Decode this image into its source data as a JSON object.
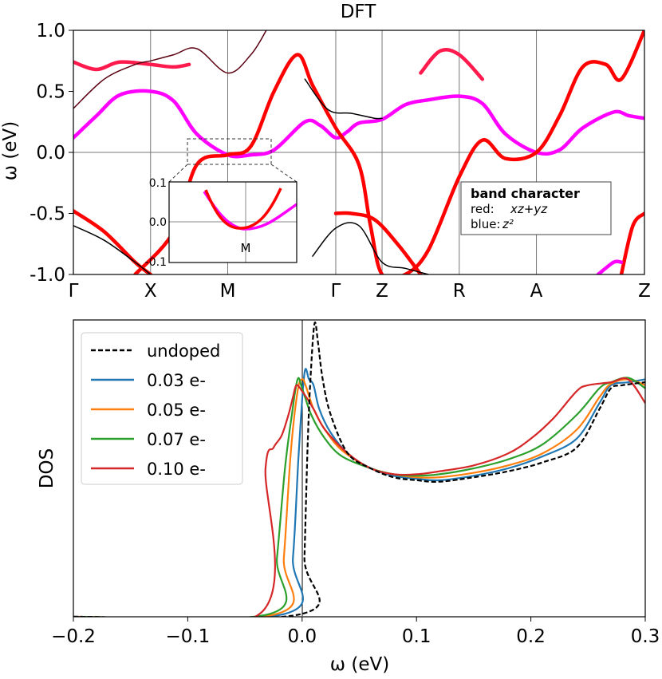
{
  "chart_data": [
    {
      "type": "line",
      "title": "DFT",
      "ylabel": "ω (eV)",
      "xlabel": "",
      "ylim": [
        -1.0,
        1.0
      ],
      "yticks": [
        "1.0",
        "0.5",
        "0.0",
        "-0.5",
        "-1.0"
      ],
      "kpoints": [
        "Γ",
        "X",
        "M",
        "Γ",
        "Z",
        "R",
        "A",
        "Z"
      ],
      "kpoint_positions": [
        0,
        1,
        2,
        3.4,
        4.0,
        5.0,
        6.0,
        7.4
      ],
      "grid": "vertical lines at high-symmetry points, horizontal line at 0",
      "legend": {
        "title": "band character",
        "entries": [
          {
            "label": "red:",
            "value": "xz+yz",
            "color": "#ff0000"
          },
          {
            "label": "blue:",
            "value": "z²",
            "color": "#1a1aff"
          }
        ],
        "position": "lower-right"
      },
      "inset": {
        "xlabel": "M",
        "ylim": [
          -0.1,
          0.1
        ],
        "yticks": [
          "0.1",
          "0.0",
          "-0.1"
        ],
        "position": "lower-center"
      },
      "series": [
        {
          "color": "#ff00ff",
          "x": [
            0,
            0.3,
            0.6,
            1.0,
            1.3,
            1.6,
            2.0,
            2.3,
            2.6,
            3.0,
            3.2,
            3.4,
            3.55,
            3.7,
            4.0,
            4.3,
            4.6,
            5.0,
            5.3,
            5.6,
            6.0,
            6.3,
            6.6,
            7.0,
            7.2,
            7.4
          ],
          "y": [
            0.12,
            0.3,
            0.47,
            0.5,
            0.42,
            0.15,
            -0.02,
            -0.02,
            0.02,
            0.25,
            0.22,
            0.12,
            0.17,
            0.24,
            0.27,
            0.39,
            0.43,
            0.46,
            0.4,
            0.15,
            0.0,
            0.02,
            0.2,
            0.33,
            0.3,
            0.28
          ]
        },
        {
          "color": "#ff0000",
          "x": [
            0.8,
            1.3,
            1.6,
            2.0,
            2.3,
            2.6,
            2.9,
            3.1,
            3.4,
            3.7,
            3.85,
            4.0,
            4.3,
            4.6,
            5.0,
            5.3,
            5.6,
            6.0,
            6.3,
            6.6,
            6.9,
            7.1,
            7.4
          ],
          "y": [
            -1.0,
            -0.65,
            -0.1,
            -0.02,
            0.05,
            0.5,
            0.8,
            0.55,
            0.2,
            -0.1,
            -0.6,
            -1.0,
            -1.0,
            -0.8,
            -0.2,
            0.1,
            -0.05,
            0.0,
            0.3,
            0.7,
            0.72,
            0.6,
            1.0
          ]
        },
        {
          "color": "#ff1a4d",
          "x": [
            0,
            0.3,
            0.6,
            1.0,
            1.3,
            1.5
          ],
          "y": [
            0.74,
            0.68,
            0.74,
            0.72,
            0.7,
            0.72
          ]
        },
        {
          "color": "#ff1a4d",
          "x": [
            4.5,
            4.75,
            5.0,
            5.3
          ],
          "y": [
            0.65,
            0.83,
            0.8,
            0.6
          ]
        },
        {
          "color": "#ff0000",
          "x": [
            0,
            0.4,
            0.8,
            1.0
          ],
          "y": [
            -0.48,
            -0.65,
            -0.9,
            -1.0
          ]
        },
        {
          "color": "#ff0000",
          "x": [
            3.4,
            3.6,
            3.9,
            4.2,
            4.5
          ],
          "y": [
            -0.5,
            -0.5,
            -0.55,
            -0.75,
            -1.0
          ]
        },
        {
          "color": "#ff0000",
          "x": [
            7.1,
            7.25,
            7.4
          ],
          "y": [
            -1.0,
            -0.6,
            -0.5
          ]
        },
        {
          "color": "#ff00ff",
          "x": [
            6.8,
            7.0,
            7.1
          ],
          "y": [
            -1.0,
            -0.9,
            -0.9
          ]
        },
        {
          "color": "#5a0010",
          "x": [
            0,
            0.4,
            0.8,
            1.0,
            1.3,
            1.6,
            2.0,
            2.3,
            2.5
          ],
          "y": [
            0.36,
            0.6,
            0.72,
            0.75,
            0.8,
            0.85,
            0.65,
            0.8,
            1.0
          ]
        },
        {
          "color": "#000000",
          "x": [
            3.0,
            3.3,
            3.6,
            3.9,
            4.0
          ],
          "y": [
            0.6,
            0.35,
            0.32,
            0.28,
            0.28
          ]
        },
        {
          "color": "#000000",
          "x": [
            0,
            0.4,
            0.8,
            1.0
          ],
          "y": [
            -0.6,
            -0.72,
            -0.9,
            -1.0
          ]
        },
        {
          "color": "#000000",
          "x": [
            3.1,
            3.4,
            3.7,
            4.0,
            4.3,
            4.6
          ],
          "y": [
            -0.85,
            -0.62,
            -0.6,
            -0.9,
            -0.95,
            -1.0
          ]
        }
      ]
    },
    {
      "type": "line",
      "xlabel": "ω (eV)",
      "ylabel": "DOS",
      "xlim": [
        -0.2,
        0.3
      ],
      "xticks": [
        "−0.2",
        "−0.1",
        "0.0",
        "0.1",
        "0.2",
        "0.3"
      ],
      "ylim": [
        0,
        1.0
      ],
      "legend_position": "top-left",
      "series": [
        {
          "name": "undoped",
          "color": "#000000",
          "dashed": true,
          "x": [
            -0.2,
            0.0,
            0.002,
            0.005,
            0.008,
            0.011,
            0.014,
            0.018,
            0.025,
            0.04,
            0.06,
            0.08,
            0.1,
            0.12,
            0.15,
            0.18,
            0.21,
            0.24,
            0.26,
            0.27,
            0.28,
            0.3
          ],
          "y": [
            0.0,
            0.01,
            0.2,
            0.6,
            0.85,
            0.99,
            0.92,
            0.8,
            0.68,
            0.55,
            0.5,
            0.47,
            0.46,
            0.455,
            0.47,
            0.49,
            0.52,
            0.57,
            0.7,
            0.77,
            0.78,
            0.79
          ]
        },
        {
          "name": "0.03 e-",
          "color": "#1f77b4",
          "dashed": false,
          "x": [
            -0.2,
            -0.015,
            -0.008,
            -0.003,
            0.002,
            0.006,
            0.01,
            0.015,
            0.025,
            0.04,
            0.06,
            0.08,
            0.1,
            0.12,
            0.15,
            0.18,
            0.21,
            0.24,
            0.26,
            0.27,
            0.285,
            0.3
          ],
          "y": [
            0.0,
            0.01,
            0.2,
            0.55,
            0.82,
            0.8,
            0.78,
            0.7,
            0.62,
            0.55,
            0.5,
            0.475,
            0.465,
            0.46,
            0.475,
            0.5,
            0.54,
            0.6,
            0.72,
            0.78,
            0.79,
            0.8
          ]
        },
        {
          "name": "0.05 e-",
          "color": "#ff7f0e",
          "dashed": false,
          "x": [
            -0.2,
            -0.022,
            -0.016,
            -0.01,
            -0.004,
            0.0,
            0.003,
            0.01,
            0.02,
            0.035,
            0.06,
            0.08,
            0.1,
            0.12,
            0.15,
            0.18,
            0.21,
            0.24,
            0.26,
            0.27,
            0.285,
            0.3
          ],
          "y": [
            0.0,
            0.01,
            0.2,
            0.55,
            0.76,
            0.8,
            0.78,
            0.7,
            0.63,
            0.56,
            0.5,
            0.48,
            0.47,
            0.47,
            0.485,
            0.51,
            0.55,
            0.63,
            0.74,
            0.785,
            0.8,
            0.78
          ]
        },
        {
          "name": "0.07 e-",
          "color": "#2ca02c",
          "dashed": false,
          "x": [
            -0.2,
            -0.028,
            -0.022,
            -0.015,
            -0.009,
            -0.004,
            0.0,
            0.008,
            0.02,
            0.035,
            0.06,
            0.08,
            0.1,
            0.12,
            0.15,
            0.18,
            0.21,
            0.24,
            0.26,
            0.27,
            0.285,
            0.3
          ],
          "y": [
            0.0,
            0.01,
            0.2,
            0.5,
            0.68,
            0.8,
            0.77,
            0.68,
            0.6,
            0.54,
            0.5,
            0.48,
            0.475,
            0.48,
            0.5,
            0.53,
            0.58,
            0.68,
            0.77,
            0.79,
            0.805,
            0.77
          ]
        },
        {
          "name": "0.10 e-",
          "color": "#d62728",
          "dashed": false,
          "x": [
            -0.2,
            -0.037,
            -0.032,
            -0.025,
            -0.018,
            -0.012,
            -0.008,
            -0.005,
            0.0,
            0.01,
            0.02,
            0.04,
            0.06,
            0.08,
            0.1,
            0.12,
            0.15,
            0.18,
            0.2,
            0.22,
            0.24,
            0.25,
            0.27,
            0.285,
            0.3
          ],
          "y": [
            0.0,
            0.01,
            0.5,
            0.57,
            0.61,
            0.68,
            0.74,
            0.78,
            0.76,
            0.7,
            0.63,
            0.55,
            0.5,
            0.48,
            0.48,
            0.49,
            0.51,
            0.55,
            0.6,
            0.67,
            0.76,
            0.78,
            0.79,
            0.8,
            0.72
          ]
        }
      ]
    }
  ]
}
